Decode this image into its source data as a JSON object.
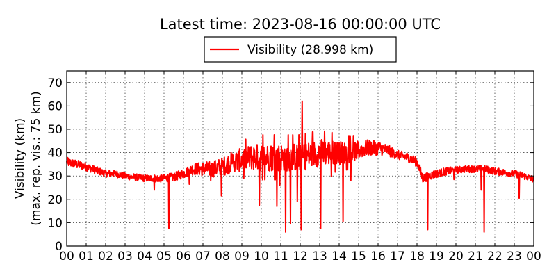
{
  "chart_data": {
    "type": "line",
    "title": "Latest time: 2023-08-16 00:00:00 UTC",
    "ylabel_line1": "Visibility (km)",
    "ylabel_line2": "(max. rep. vis.: 75 km)",
    "xlabel": "",
    "ylim": [
      0,
      75
    ],
    "yticks": [
      0,
      10,
      20,
      30,
      40,
      50,
      60,
      70
    ],
    "xlim": [
      0,
      24
    ],
    "xticks": [
      0,
      1,
      2,
      3,
      4,
      5,
      6,
      7,
      8,
      9,
      10,
      11,
      12,
      13,
      14,
      15,
      16,
      17,
      18,
      19,
      20,
      21,
      22,
      23,
      24
    ],
    "xtick_labels": [
      "00",
      "01",
      "02",
      "03",
      "04",
      "05",
      "06",
      "07",
      "08",
      "09",
      "10",
      "11",
      "12",
      "13",
      "14",
      "15",
      "16",
      "17",
      "18",
      "19",
      "20",
      "21",
      "22",
      "23",
      "00"
    ],
    "grid": true,
    "legend_position": "top-center",
    "series": [
      {
        "name": "Visibility (28.998 km)",
        "color": "#ff0000",
        "trend_x": [
          0,
          0.5,
          1.0,
          1.5,
          2.0,
          2.5,
          3.0,
          3.5,
          4.0,
          4.5,
          5.0,
          5.5,
          6.0,
          6.5,
          7.0,
          7.5,
          8.0,
          8.5,
          9.0,
          9.5,
          10.0,
          10.5,
          11.0,
          11.5,
          12.0,
          12.5,
          13.0,
          13.5,
          14.0,
          14.5,
          15.0,
          15.5,
          16.0,
          16.5,
          17.0,
          17.5,
          18.0,
          18.3,
          18.6,
          19.0,
          19.5,
          20.0,
          20.5,
          21.0,
          21.5,
          22.0,
          22.5,
          23.0,
          23.5,
          24.0
        ],
        "trend_y": [
          36,
          35,
          34,
          32.5,
          31,
          31,
          30,
          29.5,
          29,
          29,
          29,
          29.5,
          31,
          33,
          33,
          33,
          34,
          36,
          37,
          38,
          38,
          38,
          38,
          38,
          38,
          39,
          40,
          40,
          40,
          40,
          41,
          42,
          42,
          41,
          39,
          38,
          36,
          29,
          30,
          31,
          32,
          32.5,
          33,
          33,
          33,
          32,
          31.5,
          31,
          30,
          28.5
        ],
        "noise_x": [
          0,
          2,
          4,
          6,
          7,
          8,
          9,
          10,
          11,
          12,
          13,
          14,
          15,
          16,
          17,
          18,
          20,
          22,
          24
        ],
        "noise_amplitude": [
          2,
          1.5,
          1.5,
          2,
          3,
          4,
          5,
          6,
          6,
          6,
          6,
          5,
          4,
          3,
          2,
          2,
          1.5,
          1.5,
          1.5
        ],
        "spikes": [
          {
            "x": 4.5,
            "y": 24
          },
          {
            "x": 5.25,
            "y": 7.5
          },
          {
            "x": 6.3,
            "y": 26.5
          },
          {
            "x": 7.4,
            "y": 28
          },
          {
            "x": 7.95,
            "y": 21.5
          },
          {
            "x": 9.9,
            "y": 17.5
          },
          {
            "x": 10.8,
            "y": 17
          },
          {
            "x": 10.95,
            "y": 26
          },
          {
            "x": 11.25,
            "y": 6
          },
          {
            "x": 11.5,
            "y": 9.5
          },
          {
            "x": 11.85,
            "y": 19
          },
          {
            "x": 12.05,
            "y": 7
          },
          {
            "x": 12.1,
            "y": 62
          },
          {
            "x": 13.05,
            "y": 7.5
          },
          {
            "x": 13.6,
            "y": 30
          },
          {
            "x": 14.2,
            "y": 10.5
          },
          {
            "x": 14.6,
            "y": 28
          },
          {
            "x": 18.55,
            "y": 7
          },
          {
            "x": 19.9,
            "y": 28.5
          },
          {
            "x": 21.3,
            "y": 24
          },
          {
            "x": 21.45,
            "y": 6
          },
          {
            "x": 23.25,
            "y": 20.5
          }
        ]
      }
    ]
  }
}
